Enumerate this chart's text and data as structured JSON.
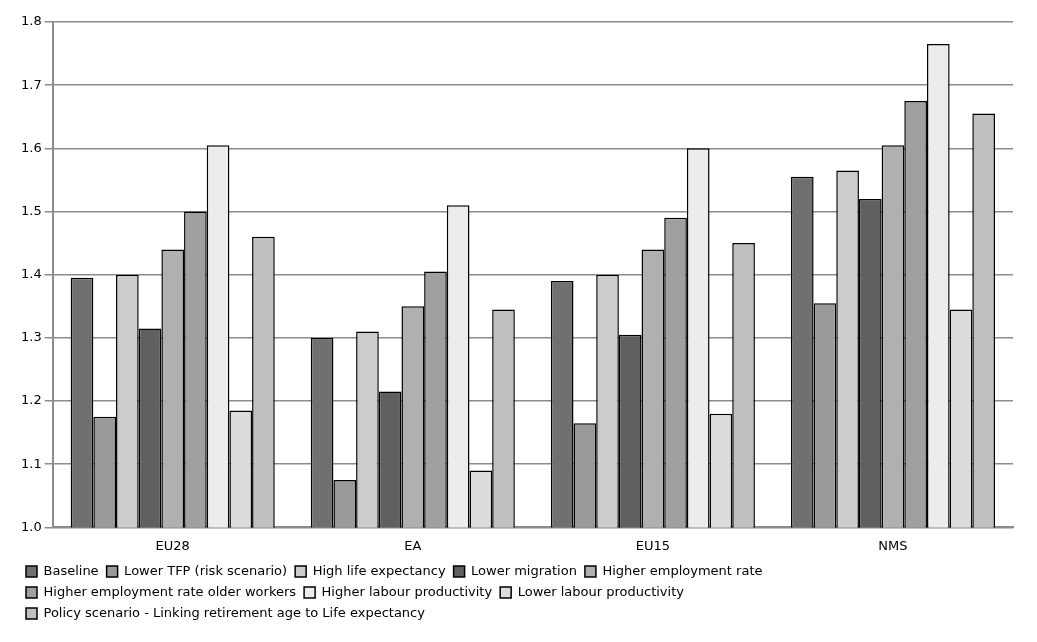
{
  "chart_data": {
    "type": "bar",
    "categories": [
      "EU28",
      "EA",
      "EU15",
      "NMS"
    ],
    "series": [
      {
        "name": "Baseline",
        "color": "#707070",
        "values": [
          1.395,
          1.3,
          1.39,
          1.555
        ]
      },
      {
        "name": "Lower TFP (risk scenario)",
        "color": "#9a9a9a",
        "values": [
          1.175,
          1.075,
          1.165,
          1.355
        ]
      },
      {
        "name": "High life expectancy",
        "color": "#cccccc",
        "values": [
          1.4,
          1.31,
          1.4,
          1.565
        ]
      },
      {
        "name": "Lower migration",
        "color": "#606060",
        "values": [
          1.315,
          1.215,
          1.305,
          1.52
        ]
      },
      {
        "name": "Higher employment rate",
        "color": "#b0b0b0",
        "values": [
          1.44,
          1.35,
          1.44,
          1.605
        ]
      },
      {
        "name": "Higher employment rate older workers",
        "color": "#a0a0a0",
        "values": [
          1.5,
          1.405,
          1.49,
          1.675
        ]
      },
      {
        "name": "Higher labour productivity",
        "color": "#ececec",
        "values": [
          1.605,
          1.51,
          1.6,
          1.765
        ]
      },
      {
        "name": "Lower labour productivity",
        "color": "#dcdcdc",
        "values": [
          1.185,
          1.09,
          1.18,
          1.345
        ]
      },
      {
        "name": "Policy scenario - Linking retirement age to Life expectancy",
        "color": "#c0c0c0",
        "values": [
          1.46,
          1.345,
          1.45,
          1.655
        ]
      }
    ],
    "ylim": [
      1.0,
      1.8
    ],
    "yticks": [
      {
        "value": 1.0,
        "label": "1.0"
      },
      {
        "value": 1.1,
        "label": "1.1"
      },
      {
        "value": 1.2,
        "label": "1.2"
      },
      {
        "value": 1.3,
        "label": "1.3"
      },
      {
        "value": 1.4,
        "label": "1.4"
      },
      {
        "value": 1.5,
        "label": "1.5"
      },
      {
        "value": 1.6,
        "label": "1.6"
      },
      {
        "value": 1.7,
        "label": "1.7"
      },
      {
        "value": 1.8,
        "label": "1.8"
      }
    ],
    "grid": "y",
    "legend": "bottom"
  }
}
